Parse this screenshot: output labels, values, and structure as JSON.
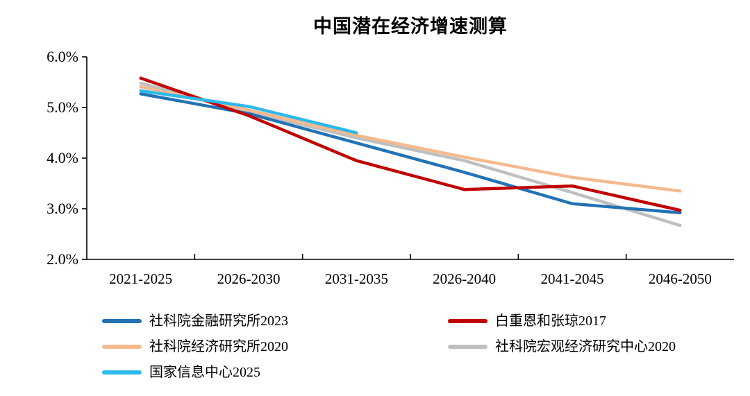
{
  "title": "中国潜在经济增速测算",
  "colors": {
    "axis": "#000000",
    "text": "#000000",
    "background": "#ffffff"
  },
  "chart_data": {
    "type": "line",
    "title": "中国潜在经济增速测算",
    "xlabel": "",
    "ylabel": "",
    "categories": [
      "2021-2025",
      "2026-2030",
      "2031-2035",
      "2026-2040",
      "2041-2045",
      "2046-2050"
    ],
    "series": [
      {
        "name": "社科院金融研究所2023",
        "color": "#2272B4",
        "values": [
          5.27,
          4.88,
          4.3,
          3.72,
          3.1,
          2.92
        ]
      },
      {
        "name": "白重恩和张琼2017",
        "color": "#C00000",
        "values": [
          5.58,
          4.84,
          3.95,
          3.38,
          3.45,
          2.97
        ]
      },
      {
        "name": "社科院经济研究所2020",
        "color": "#F5B98E",
        "values": [
          5.41,
          4.95,
          4.45,
          4.02,
          3.62,
          3.35
        ]
      },
      {
        "name": "社科院宏观经济研究中心2020",
        "color": "#BFBFBF",
        "values": [
          5.48,
          4.92,
          4.4,
          3.95,
          3.32,
          2.67
        ]
      },
      {
        "name": "国家信息中心2025",
        "color": "#2CB9EC",
        "values": [
          5.33,
          5.02,
          4.5,
          null,
          null,
          null
        ]
      }
    ],
    "ylim": [
      2.0,
      6.0
    ],
    "ytick_values": [
      2.0,
      3.0,
      4.0,
      5.0,
      6.0
    ],
    "ytick_labels": [
      "2.0%",
      "3.0%",
      "4.0%",
      "5.0%",
      "6.0%"
    ],
    "grid": false,
    "legend_position": "bottom-left, two columns",
    "legend_order_note": "col1: series 0,2,4; col2: series 1,3"
  }
}
